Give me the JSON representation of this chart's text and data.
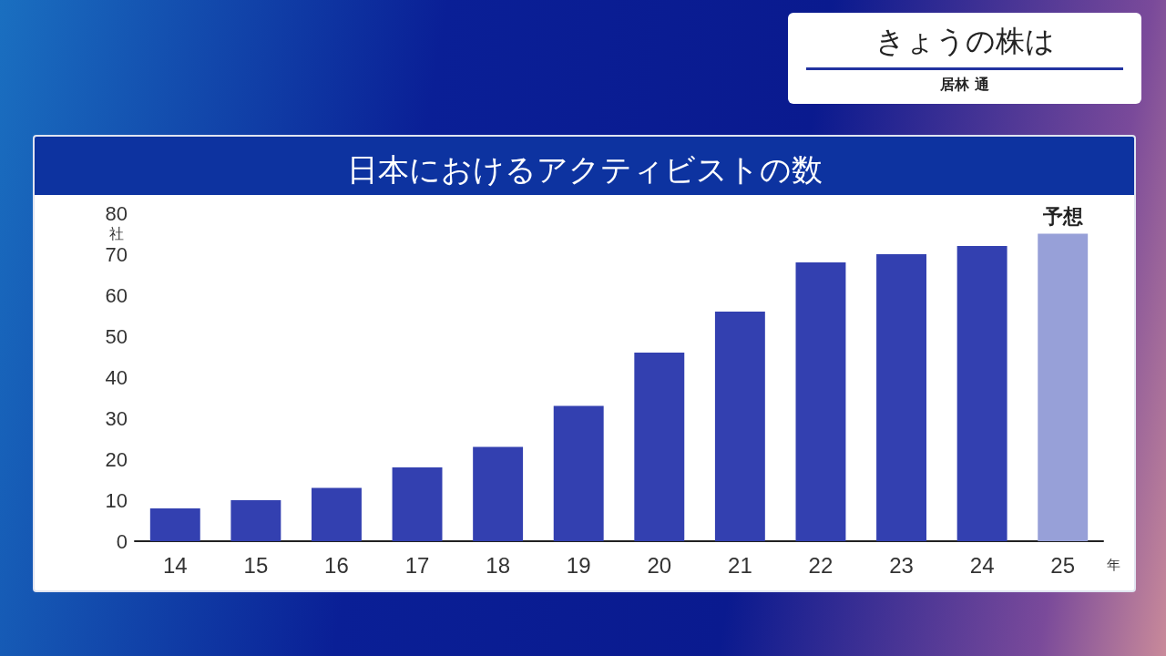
{
  "chart_data": {
    "type": "bar",
    "title": "日本におけるアクティビストの数",
    "xlabel": "年",
    "ylabel": "社",
    "categories": [
      "14",
      "15",
      "16",
      "17",
      "18",
      "19",
      "20",
      "21",
      "22",
      "23",
      "24",
      "25"
    ],
    "values": [
      8,
      10,
      13,
      18,
      23,
      33,
      46,
      56,
      68,
      70,
      72,
      75
    ],
    "colors": [
      "#3340b0",
      "#3340b0",
      "#3340b0",
      "#3340b0",
      "#3340b0",
      "#3340b0",
      "#3340b0",
      "#3340b0",
      "#3340b0",
      "#3340b0",
      "#3340b0",
      "#97a0d8"
    ],
    "ylim": [
      0,
      80
    ],
    "yticks": [
      0,
      10,
      20,
      30,
      40,
      50,
      60,
      70,
      80
    ],
    "grid": false,
    "annotations": [
      "きょうの株は",
      "居林 通",
      {
        "text": "予想",
        "x": "25",
        "y": 75
      }
    ]
  }
}
